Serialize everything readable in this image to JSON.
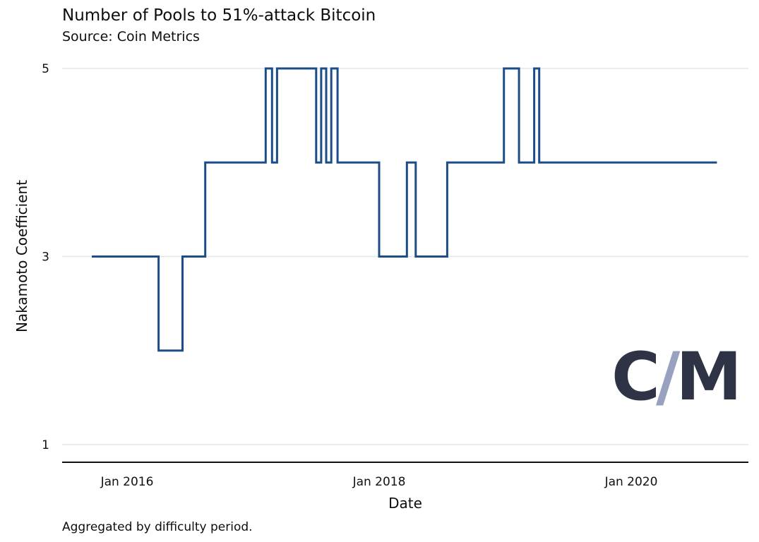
{
  "page": {
    "title": "Number of Pools to 51%-attack Bitcoin",
    "subtitle": "Source: Coin Metrics",
    "footnote": "Aggregated by difficulty period.",
    "logo": {
      "left": "C",
      "slash": "/",
      "right": "M"
    }
  },
  "chart_data": {
    "type": "line",
    "line_style": "step-after",
    "title": "Number of Pools to 51%-attack Bitcoin",
    "subtitle": "Source: Coin Metrics",
    "xlabel": "Date",
    "ylabel": "Nakamoto Coefficient",
    "footnote": "Aggregated by difficulty period.",
    "grid": "horizontal",
    "legend": "none",
    "colors": {
      "line": "#1b4e89",
      "gridline": "#e6e6e6",
      "axis": "#111111"
    },
    "y_domain": [
      1,
      5
    ],
    "y_ticks": [
      {
        "value": 5,
        "label": "5"
      },
      {
        "value": 3,
        "label": "3"
      },
      {
        "value": 1,
        "label": "1"
      }
    ],
    "x_domain_years": [
      2015.7,
      2020.72
    ],
    "x_ticks": [
      {
        "value": 2016,
        "label": "Jan 2016"
      },
      {
        "value": 2018,
        "label": "Jan 2018"
      },
      {
        "value": 2020,
        "label": "Jan 2020"
      }
    ],
    "series": [
      {
        "name": "Nakamoto Coefficient",
        "color": "#1b4e89",
        "steps": [
          [
            2015.72,
            3
          ],
          [
            2016.25,
            2
          ],
          [
            2016.44,
            3
          ],
          [
            2016.62,
            4
          ],
          [
            2017.1,
            5
          ],
          [
            2017.15,
            4
          ],
          [
            2017.19,
            5
          ],
          [
            2017.5,
            4
          ],
          [
            2017.54,
            5
          ],
          [
            2017.58,
            4
          ],
          [
            2017.62,
            5
          ],
          [
            2017.67,
            4
          ],
          [
            2018.0,
            3
          ],
          [
            2018.22,
            4
          ],
          [
            2018.29,
            3
          ],
          [
            2018.54,
            4
          ],
          [
            2018.99,
            5
          ],
          [
            2019.11,
            4
          ],
          [
            2019.23,
            5
          ],
          [
            2019.27,
            4
          ]
        ],
        "end_year": 2020.68
      }
    ]
  }
}
